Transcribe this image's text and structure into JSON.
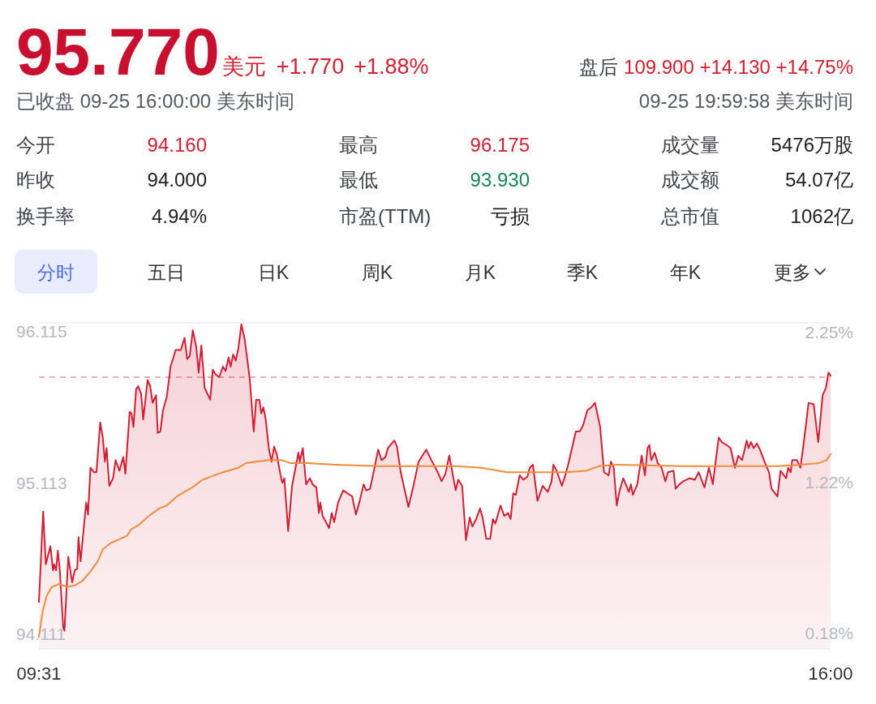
{
  "chart_data": {
    "type": "area",
    "title": "95.770",
    "subtitle": "已收盘 09-25 16:00:00 美东时间",
    "annotations": [
      "美元",
      "+1.770",
      "+1.88%",
      "盘后",
      "109.900 +14.130 +14.75%",
      "09-25 19:59:58 美东时间",
      "今开",
      "94.160",
      "昨收",
      "94.000",
      "换手率",
      "4.94%",
      "最高",
      "96.175",
      "最低",
      "93.930",
      "市盈(TTM)",
      "亏损",
      "成交量",
      "5476万股",
      "成交额",
      "54.07亿",
      "总市值",
      "1062亿",
      "分时",
      "五日",
      "日K",
      "周K",
      "月K",
      "季K",
      "年K",
      "更多"
    ],
    "xlim": [
      9.517,
      16
    ],
    "xticks": [
      {
        "value": 9.517,
        "label": "09:31"
      },
      {
        "value": 16,
        "label": "16:00"
      }
    ],
    "ylim": [
      94.01,
      96.17
    ],
    "yticks": [
      94.111,
      95.113,
      96.115
    ],
    "y2lim": [
      0.07,
      2.31
    ],
    "y2ticks": [
      {
        "value": 0.18,
        "label": "0.18%"
      },
      {
        "value": 1.22,
        "label": "1.22%"
      },
      {
        "value": 2.25,
        "label": "2.25%"
      }
    ],
    "ref_lines": [
      {
        "axis": "y",
        "value": 95.81,
        "color": "#f0939b",
        "line_style": "dashed"
      }
    ],
    "series": [
      {
        "color": "#d01f35",
        "x": [
          9.517,
          9.552,
          9.573,
          9.611,
          9.632,
          9.642,
          9.657,
          9.672,
          9.688,
          9.716,
          9.726,
          9.757,
          9.789,
          9.81,
          9.831,
          9.841,
          9.858,
          9.904,
          9.919,
          9.939,
          9.967,
          9.988,
          10.019,
          10.04,
          10.057,
          10.071,
          10.093,
          10.124,
          10.145,
          10.176,
          10.208,
          10.225,
          10.26,
          10.275,
          10.291,
          10.313,
          10.329,
          10.354,
          10.371,
          10.407,
          10.428,
          10.448,
          10.476,
          10.49,
          10.511,
          10.533,
          10.564,
          10.595,
          10.637,
          10.679,
          10.71,
          10.731,
          10.752,
          10.777,
          10.805,
          10.825,
          10.847,
          10.874,
          10.92,
          10.941,
          10.962,
          10.993,
          11.024,
          11.045,
          11.07,
          11.087,
          11.108,
          11.129,
          11.15,
          11.175,
          11.202,
          11.223,
          11.244,
          11.276,
          11.296,
          11.322,
          11.338,
          11.355,
          11.374,
          11.401,
          11.422,
          11.443,
          11.464,
          11.496,
          11.51,
          11.527,
          11.558,
          11.59,
          11.642,
          11.653,
          11.678,
          11.705,
          11.736,
          11.758,
          11.789,
          11.81,
          11.821,
          11.841,
          11.893,
          11.915,
          11.935,
          11.967,
          12.009,
          12.082,
          12.113,
          12.144,
          12.176,
          12.197,
          12.229,
          12.26,
          12.295,
          12.323,
          12.354,
          12.375,
          12.427,
          12.449,
          12.48,
          12.543,
          12.584,
          12.626,
          12.689,
          12.731,
          12.783,
          12.815,
          12.846,
          12.877,
          12.93,
          12.951,
          12.983,
          13.014,
          13.045,
          13.066,
          13.098,
          13.129,
          13.15,
          13.181,
          13.213,
          13.234,
          13.255,
          13.297,
          13.328,
          13.359,
          13.38,
          13.401,
          13.422,
          13.454,
          13.485,
          13.517,
          13.537,
          13.562,
          13.6,
          13.642,
          13.684,
          13.715,
          13.73,
          13.757,
          13.799,
          13.82,
          13.851,
          13.914,
          13.946,
          13.973,
          14.008,
          14.04,
          14.071,
          14.113,
          14.145,
          14.182,
          14.201,
          14.224,
          14.249,
          14.27,
          14.302,
          14.348,
          14.365,
          14.381,
          14.417,
          14.453,
          14.48,
          14.501,
          14.516,
          14.532,
          14.559,
          14.585,
          14.616,
          14.647,
          14.668,
          14.714,
          14.731,
          14.762,
          14.794,
          14.846,
          14.888,
          14.92,
          14.967,
          15.004,
          15.036,
          15.057,
          15.084,
          15.109,
          15.15,
          15.181,
          15.217,
          15.244,
          15.276,
          15.313,
          15.328,
          15.348,
          15.37,
          15.397,
          15.422,
          15.464,
          15.496,
          15.516,
          15.565,
          15.59,
          15.636,
          15.653,
          15.673,
          15.686,
          15.725,
          15.753,
          15.778,
          15.82,
          15.862,
          15.899,
          15.935,
          15.962,
          15.983,
          16.0
        ],
        "values": [
          94.32,
          94.92,
          94.57,
          94.69,
          94.53,
          94.57,
          94.53,
          94.66,
          94.53,
          94.15,
          94.13,
          94.62,
          94.45,
          94.53,
          94.54,
          94.75,
          94.59,
          94.98,
          94.9,
          95.21,
          95.18,
          95.18,
          95.51,
          95.41,
          95.25,
          95.34,
          95.09,
          95.14,
          95.26,
          95.19,
          95.28,
          95.17,
          95.58,
          95.57,
          95.48,
          95.73,
          95.75,
          95.7,
          95.53,
          95.79,
          95.75,
          95.64,
          95.69,
          95.44,
          95.45,
          95.59,
          95.68,
          95.88,
          95.99,
          95.99,
          96.07,
          95.93,
          95.95,
          96.12,
          96.01,
          95.84,
          96.02,
          95.74,
          95.66,
          95.86,
          95.83,
          95.81,
          95.88,
          95.85,
          95.94,
          95.88,
          95.96,
          95.92,
          96.0,
          96.16,
          96.06,
          95.93,
          95.79,
          95.45,
          95.66,
          95.66,
          95.57,
          95.61,
          95.53,
          95.33,
          95.25,
          95.35,
          95.3,
          95.16,
          95.11,
          95.14,
          94.79,
          95.09,
          95.31,
          95.25,
          95.34,
          95.1,
          95.14,
          95.1,
          95.08,
          94.91,
          94.98,
          94.89,
          94.81,
          94.91,
          94.85,
          94.98,
          95.06,
          95.02,
          94.9,
          94.99,
          95.1,
          95.06,
          95.07,
          95.19,
          95.33,
          95.26,
          95.28,
          95.34,
          95.39,
          95.35,
          95.18,
          94.95,
          95.09,
          95.25,
          95.33,
          95.26,
          95.18,
          95.12,
          95.17,
          95.29,
          95.06,
          95.13,
          95.09,
          94.73,
          94.88,
          94.82,
          94.87,
          94.94,
          94.88,
          94.74,
          94.74,
          94.87,
          94.84,
          94.96,
          94.89,
          94.91,
          94.87,
          95.04,
          95.03,
          95.16,
          95.13,
          95.15,
          95.21,
          95.23,
          94.99,
          95.09,
          95.05,
          95.12,
          95.23,
          95.19,
          95.09,
          95.14,
          95.23,
          95.45,
          95.45,
          95.49,
          95.59,
          95.61,
          95.64,
          95.48,
          95.18,
          95.16,
          95.25,
          95.21,
          94.96,
          95.05,
          95.14,
          95.05,
          95.1,
          95.03,
          95.1,
          95.29,
          95.16,
          95.34,
          95.36,
          95.26,
          95.31,
          95.24,
          95.21,
          95.12,
          95.18,
          95.19,
          95.07,
          95.1,
          95.12,
          95.14,
          95.13,
          95.18,
          95.08,
          95.21,
          95.1,
          95.24,
          95.41,
          95.38,
          95.36,
          95.34,
          95.21,
          95.29,
          95.26,
          95.39,
          95.34,
          95.38,
          95.34,
          95.37,
          95.33,
          95.24,
          95.18,
          95.07,
          95.02,
          95.19,
          95.14,
          95.21,
          95.18,
          95.26,
          95.26,
          95.21,
          95.36,
          95.64,
          95.63,
          95.38,
          95.69,
          95.74,
          95.84,
          95.82
        ]
      },
      {
        "type": "line",
        "color": "#f08a3c",
        "x": [
          9.517,
          9.548,
          9.58,
          9.622,
          9.684,
          9.747,
          9.81,
          9.873,
          9.936,
          9.999,
          10.04,
          10.103,
          10.187,
          10.239,
          10.271,
          10.333,
          10.417,
          10.501,
          10.564,
          10.647,
          10.71,
          10.773,
          10.857,
          10.92,
          11.024,
          11.15,
          11.213,
          11.296,
          11.401,
          11.506,
          11.579,
          11.715,
          11.946,
          12.302,
          12.93,
          13.14,
          13.349,
          13.83,
          13.998,
          14.103,
          14.249,
          14.794,
          15.568,
          15.757,
          15.904,
          15.967,
          16.0
        ],
        "values": [
          94.09,
          94.26,
          94.36,
          94.42,
          94.44,
          94.42,
          94.43,
          94.46,
          94.52,
          94.59,
          94.67,
          94.71,
          94.74,
          94.76,
          94.8,
          94.83,
          94.89,
          94.94,
          94.96,
          95.02,
          95.05,
          95.08,
          95.13,
          95.15,
          95.18,
          95.21,
          95.24,
          95.25,
          95.26,
          95.26,
          95.24,
          95.24,
          95.23,
          95.22,
          95.22,
          95.21,
          95.18,
          95.18,
          95.19,
          95.22,
          95.23,
          95.22,
          95.22,
          95.23,
          95.24,
          95.26,
          95.3
        ]
      }
    ]
  }
}
